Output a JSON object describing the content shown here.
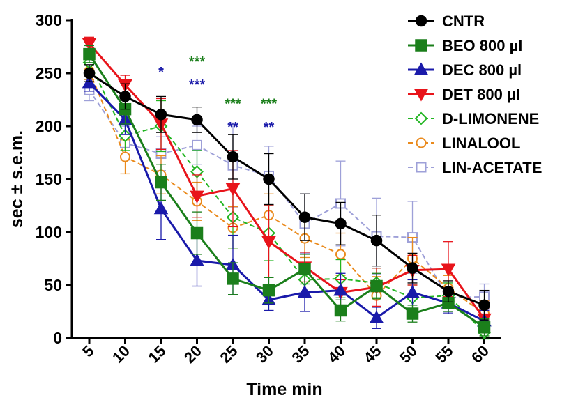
{
  "chart_data": {
    "type": "line",
    "xlabel": "Time min",
    "ylabel": "sec ± s.e.m.",
    "x": [
      5,
      10,
      15,
      20,
      25,
      30,
      35,
      40,
      45,
      50,
      55,
      60
    ],
    "xticks": [
      "5",
      "10",
      "15",
      "20",
      "25",
      "30",
      "35",
      "40",
      "45",
      "50",
      "55",
      "60"
    ],
    "ylim": [
      0,
      300
    ],
    "yticks": [
      "0",
      "50",
      "100",
      "150",
      "200",
      "250",
      "300"
    ],
    "legend_position": "top-right",
    "grid": false,
    "series": [
      {
        "name": "CNTR",
        "color": "#000000",
        "marker": "circle",
        "filled": true,
        "dashed": false,
        "values": [
          250,
          228,
          211,
          206,
          171,
          150,
          114,
          108,
          92,
          66,
          44,
          31
        ],
        "err": [
          8,
          12,
          17,
          12,
          21,
          24,
          22,
          20,
          24,
          14,
          10,
          14
        ]
      },
      {
        "name": "BEO 800 µl",
        "color": "#1b7f1b",
        "marker": "square",
        "filled": true,
        "dashed": false,
        "values": [
          268,
          216,
          147,
          99,
          56,
          45,
          65,
          26,
          49,
          23,
          33,
          10
        ],
        "err": [
          8,
          14,
          17,
          20,
          15,
          12,
          14,
          10,
          12,
          8,
          8,
          8
        ]
      },
      {
        "name": "DEC 800 µl",
        "color": "#1a1aaa",
        "marker": "triangle-up",
        "filled": true,
        "dashed": false,
        "values": [
          241,
          206,
          122,
          73,
          69,
          36,
          43,
          45,
          19,
          43,
          33,
          16
        ],
        "err": [
          8,
          14,
          29,
          24,
          28,
          10,
          18,
          16,
          10,
          12,
          10,
          10
        ]
      },
      {
        "name": "DET 800 µl",
        "color": "#e8141b",
        "marker": "triangle-down",
        "filled": true,
        "dashed": false,
        "values": [
          278,
          239,
          202,
          134,
          141,
          91,
          67,
          43,
          48,
          64,
          65,
          18
        ],
        "err": [
          6,
          9,
          24,
          20,
          36,
          34,
          14,
          12,
          18,
          14,
          26,
          10
        ]
      },
      {
        "name": "D-LIMONENE",
        "color": "#22b522",
        "marker": "diamond",
        "filled": false,
        "dashed": true,
        "values": [
          260,
          191,
          200,
          157,
          114,
          99,
          55,
          56,
          52,
          38,
          40,
          5
        ],
        "err": [
          8,
          14,
          24,
          20,
          30,
          26,
          16,
          18,
          14,
          12,
          12,
          6
        ]
      },
      {
        "name": "LINALOOL",
        "color": "#ea8a1c",
        "marker": "circle",
        "filled": false,
        "dashed": true,
        "values": [
          252,
          171,
          154,
          129,
          104,
          116,
          94,
          79,
          40,
          75,
          47,
          23
        ],
        "err": [
          8,
          16,
          18,
          18,
          20,
          20,
          18,
          20,
          18,
          20,
          12,
          12
        ]
      },
      {
        "name": "LIN-ACETATE",
        "color": "#9ea0d8",
        "marker": "square",
        "filled": false,
        "dashed": true,
        "values": [
          234,
          184,
          174,
          182,
          163,
          153,
          108,
          127,
          96,
          95,
          38,
          39
        ],
        "err": [
          10,
          16,
          16,
          18,
          40,
          28,
          28,
          40,
          36,
          34,
          14,
          12
        ]
      }
    ],
    "annotations": [
      {
        "x": 15,
        "y": 252,
        "text": "*",
        "color": "#1a1aaa"
      },
      {
        "x": 20,
        "y": 262,
        "text": "***",
        "color": "#1b7f1b"
      },
      {
        "x": 20,
        "y": 240,
        "text": "***",
        "color": "#1a1aaa"
      },
      {
        "x": 25,
        "y": 222,
        "text": "***",
        "color": "#1b7f1b"
      },
      {
        "x": 25,
        "y": 200,
        "text": "**",
        "color": "#1a1aaa"
      },
      {
        "x": 30,
        "y": 222,
        "text": "***",
        "color": "#1b7f1b"
      },
      {
        "x": 30,
        "y": 200,
        "text": "**",
        "color": "#1a1aaa"
      }
    ]
  }
}
